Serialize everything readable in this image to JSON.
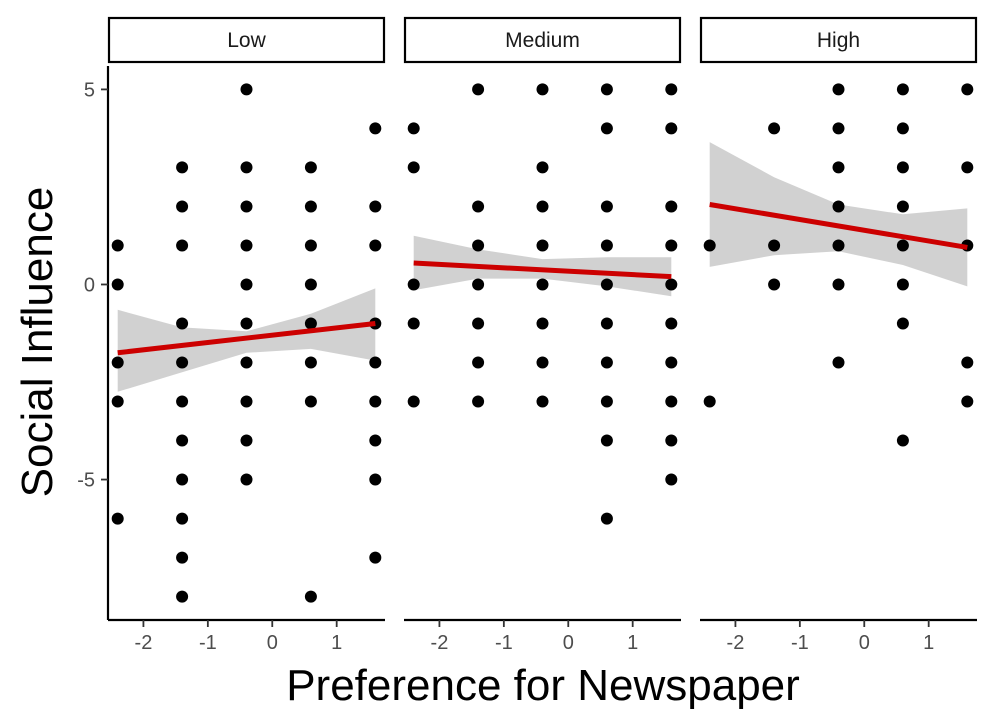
{
  "chart_data": {
    "type": "scatter",
    "facet_variable_levels": [
      "Low",
      "Medium",
      "High"
    ],
    "xlabel": "Preference for Newspaper",
    "ylabel": "Social Influence",
    "xlim": [
      -2.55,
      1.75
    ],
    "ylim": [
      -8.6,
      5.6
    ],
    "x_ticks": [
      -2,
      -1,
      0,
      1
    ],
    "y_ticks": [
      -5,
      0,
      5
    ],
    "grid": false,
    "point_color": "#000000",
    "fit_line_color": "#cc0000",
    "ci_band_color": "#cccccc",
    "panels": [
      {
        "label": "Low",
        "points": [
          [
            -2.4,
            1
          ],
          [
            -2.4,
            0
          ],
          [
            -2.4,
            -2
          ],
          [
            -2.4,
            -3
          ],
          [
            -2.4,
            -6
          ],
          [
            -1.4,
            3
          ],
          [
            -1.4,
            2
          ],
          [
            -1.4,
            1
          ],
          [
            -1.4,
            -1
          ],
          [
            -1.4,
            -2
          ],
          [
            -1.4,
            -3
          ],
          [
            -1.4,
            -4
          ],
          [
            -1.4,
            -5
          ],
          [
            -1.4,
            -6
          ],
          [
            -1.4,
            -7
          ],
          [
            -1.4,
            -8
          ],
          [
            -0.4,
            5
          ],
          [
            -0.4,
            3
          ],
          [
            -0.4,
            2
          ],
          [
            -0.4,
            1
          ],
          [
            -0.4,
            0
          ],
          [
            -0.4,
            -1
          ],
          [
            -0.4,
            -2
          ],
          [
            -0.4,
            -3
          ],
          [
            -0.4,
            -4
          ],
          [
            -0.4,
            -5
          ],
          [
            0.6,
            3
          ],
          [
            0.6,
            2
          ],
          [
            0.6,
            1
          ],
          [
            0.6,
            0
          ],
          [
            0.6,
            -1
          ],
          [
            0.6,
            -2
          ],
          [
            0.6,
            -3
          ],
          [
            0.6,
            -8
          ],
          [
            1.6,
            4
          ],
          [
            1.6,
            2
          ],
          [
            1.6,
            1
          ],
          [
            1.6,
            -1
          ],
          [
            1.6,
            -2
          ],
          [
            1.6,
            -3
          ],
          [
            1.6,
            -4
          ],
          [
            1.6,
            -5
          ],
          [
            1.6,
            -7
          ]
        ],
        "fit": {
          "x": [
            -2.4,
            1.6
          ],
          "y": [
            -1.75,
            -1.0
          ]
        },
        "ci": {
          "x": [
            -2.4,
            -1.4,
            -0.4,
            0.6,
            1.6
          ],
          "lower": [
            -2.75,
            -2.25,
            -1.75,
            -1.65,
            -1.95
          ],
          "upper": [
            -0.65,
            -1.1,
            -1.2,
            -0.75,
            -0.1
          ]
        }
      },
      {
        "label": "Medium",
        "points": [
          [
            -2.4,
            4
          ],
          [
            -2.4,
            3
          ],
          [
            -2.4,
            0
          ],
          [
            -2.4,
            -1
          ],
          [
            -2.4,
            -3
          ],
          [
            -1.4,
            5
          ],
          [
            -1.4,
            2
          ],
          [
            -1.4,
            1
          ],
          [
            -1.4,
            0
          ],
          [
            -1.4,
            -1
          ],
          [
            -1.4,
            -2
          ],
          [
            -1.4,
            -3
          ],
          [
            -0.4,
            5
          ],
          [
            -0.4,
            3
          ],
          [
            -0.4,
            2
          ],
          [
            -0.4,
            1
          ],
          [
            -0.4,
            0
          ],
          [
            -0.4,
            -1
          ],
          [
            -0.4,
            -2
          ],
          [
            -0.4,
            -3
          ],
          [
            0.6,
            5
          ],
          [
            0.6,
            4
          ],
          [
            0.6,
            2
          ],
          [
            0.6,
            1
          ],
          [
            0.6,
            0
          ],
          [
            0.6,
            -1
          ],
          [
            0.6,
            -2
          ],
          [
            0.6,
            -3
          ],
          [
            0.6,
            -4
          ],
          [
            0.6,
            -6
          ],
          [
            1.6,
            5
          ],
          [
            1.6,
            4
          ],
          [
            1.6,
            2
          ],
          [
            1.6,
            1
          ],
          [
            1.6,
            0
          ],
          [
            1.6,
            -1
          ],
          [
            1.6,
            -2
          ],
          [
            1.6,
            -3
          ],
          [
            1.6,
            -4
          ],
          [
            1.6,
            -5
          ]
        ],
        "fit": {
          "x": [
            -2.4,
            1.6
          ],
          "y": [
            0.55,
            0.2
          ]
        },
        "ci": {
          "x": [
            -2.4,
            -1.4,
            -0.4,
            0.6,
            1.6
          ],
          "lower": [
            -0.15,
            0.15,
            0.15,
            -0.05,
            -0.3
          ],
          "upper": [
            1.25,
            0.9,
            0.65,
            0.7,
            0.7
          ]
        }
      },
      {
        "label": "High",
        "points": [
          [
            -2.4,
            1
          ],
          [
            -2.4,
            -3
          ],
          [
            -1.4,
            4
          ],
          [
            -1.4,
            1
          ],
          [
            -1.4,
            0
          ],
          [
            -0.4,
            5
          ],
          [
            -0.4,
            4
          ],
          [
            -0.4,
            3
          ],
          [
            -0.4,
            2
          ],
          [
            -0.4,
            1
          ],
          [
            -0.4,
            0
          ],
          [
            -0.4,
            -2
          ],
          [
            0.6,
            5
          ],
          [
            0.6,
            4
          ],
          [
            0.6,
            3
          ],
          [
            0.6,
            2
          ],
          [
            0.6,
            1
          ],
          [
            0.6,
            0
          ],
          [
            0.6,
            -1
          ],
          [
            0.6,
            -4
          ],
          [
            1.6,
            5
          ],
          [
            1.6,
            3
          ],
          [
            1.6,
            1
          ],
          [
            1.6,
            -2
          ],
          [
            1.6,
            -3
          ]
        ],
        "fit": {
          "x": [
            -2.4,
            1.6
          ],
          "y": [
            2.05,
            0.95
          ]
        },
        "ci": {
          "x": [
            -2.4,
            -1.4,
            -0.4,
            0.6,
            1.6
          ],
          "lower": [
            0.45,
            0.75,
            0.85,
            0.5,
            -0.05
          ],
          "upper": [
            3.65,
            2.75,
            2.05,
            1.8,
            1.95
          ]
        }
      }
    ]
  }
}
